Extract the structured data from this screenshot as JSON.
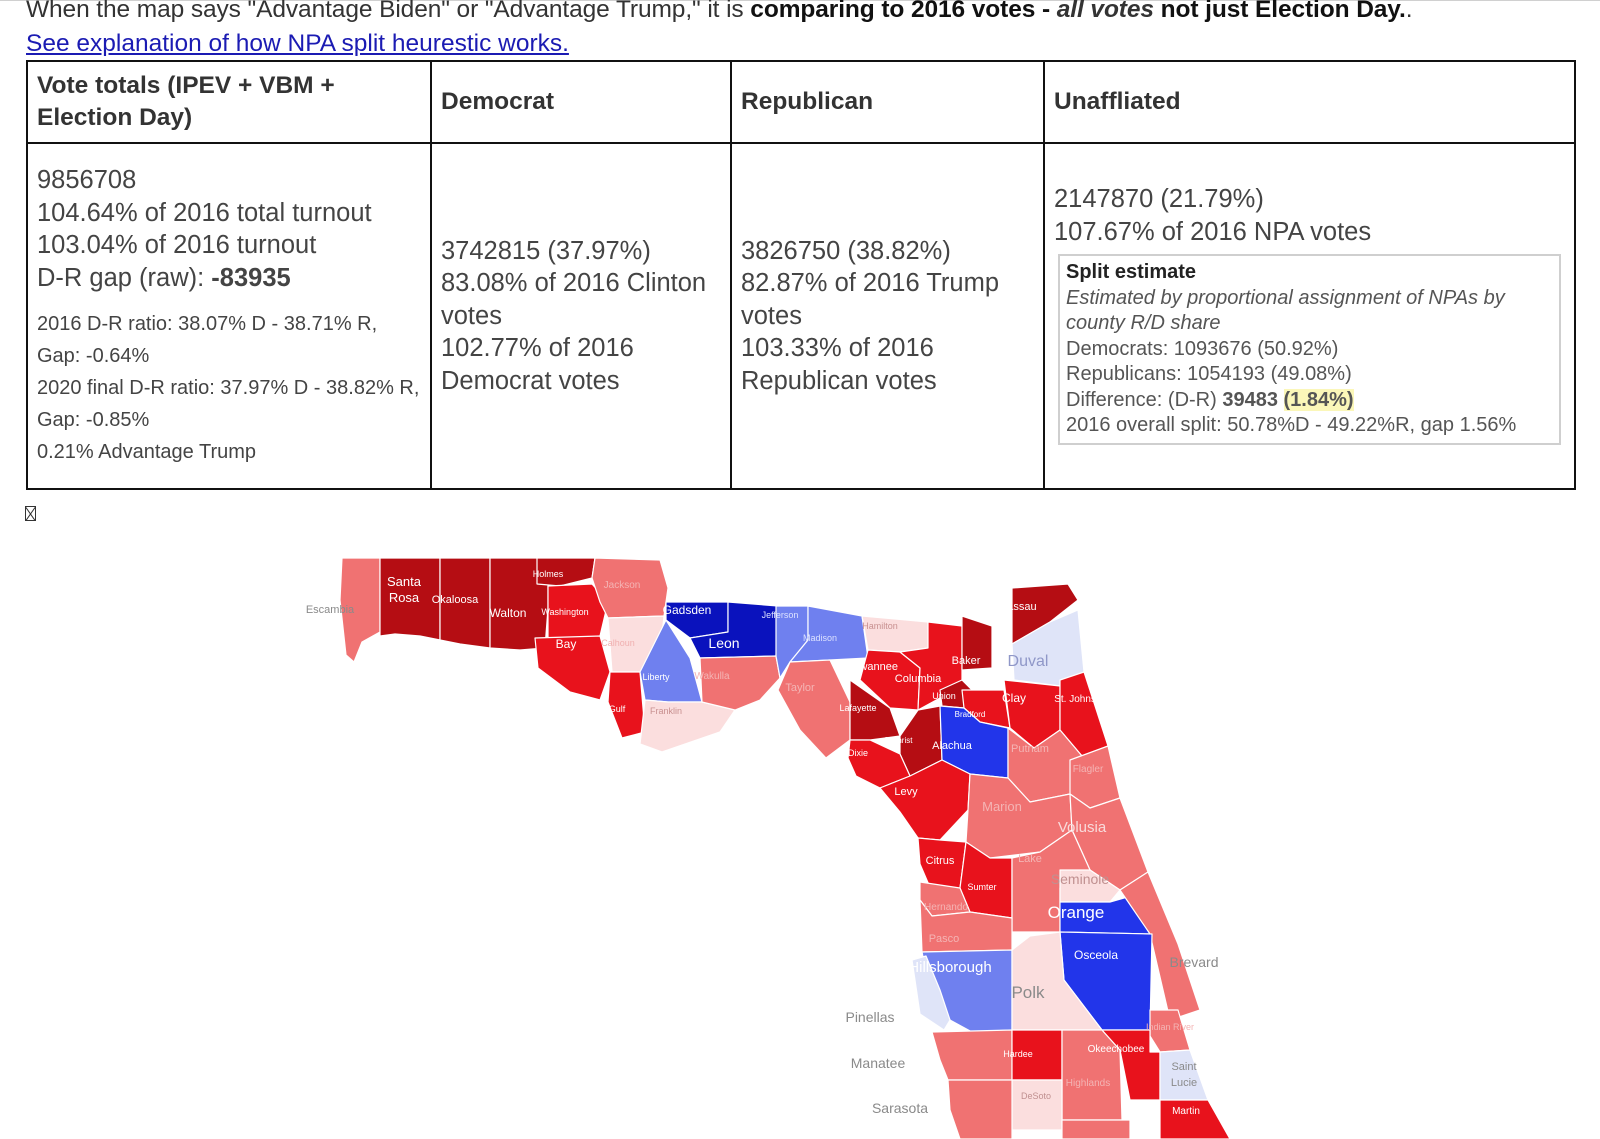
{
  "intro": {
    "prefix": "When the map says \"Advantage Biden\" or \"Advantage Trump,\" it is ",
    "bold_a": "comparing to 2016 votes - ",
    "bold_italic": "all votes",
    "bold_b": " not just Election Day.",
    "suffix": "."
  },
  "explain_link": "See explanation of how NPA split heurestic works.",
  "table": {
    "headers": {
      "totals": "Vote totals (IPEV + VBM + Election Day)",
      "democrat": "Democrat",
      "republican": "Republican",
      "unaffiliated": "Unaffliated"
    },
    "totals": {
      "total": "9856708",
      "pct_total_turnout": "104.64% of 2016 total turnout",
      "pct_turnout": "103.04% of 2016 turnout",
      "gap_label": "D-R gap (raw): ",
      "gap_value": "-83935",
      "ratio_2016": "2016 D-R ratio: 38.07% D - 38.71% R, Gap: -0.64%",
      "ratio_2020": "2020 final D-R ratio: 37.97% D - 38.82% R, Gap: -0.85%",
      "advantage": "0.21% Advantage Trump"
    },
    "democrat": {
      "votes": "3742815 (37.97%)",
      "pct_clinton": "83.08% of 2016 Clinton votes",
      "pct_party": "102.77% of 2016 Democrat votes"
    },
    "republican": {
      "votes": "3826750 (38.82%)",
      "pct_trump": "82.87% of 2016 Trump votes",
      "pct_party": "103.33% of 2016 Republican votes"
    },
    "unaffiliated": {
      "votes": "2147870 (21.79%)",
      "pct_npa": "107.67% of 2016 NPA votes",
      "split": {
        "title": "Split estimate",
        "desc": "Estimated by proportional assignment of NPAs by county R/D share",
        "democrats": "Democrats: 1093676 (50.92%)",
        "republicans": "Republicans: 1054193 (49.08%)",
        "diff_label": "Difference: (D-R) ",
        "diff_value": "39483",
        "diff_pct": "(1.84%)",
        "overall": "2016 overall split: 50.78%D - 49.22%R, gap 1.56%"
      }
    }
  },
  "map": {
    "labels": {
      "escambia": "Escambia",
      "santa_rosa_1": "Santa",
      "santa_rosa_2": "Rosa",
      "okaloosa": "Okaloosa",
      "walton": "Walton",
      "holmes": "Holmes",
      "washington": "Washington",
      "jackson": "Jackson",
      "bay": "Bay",
      "calhoun": "Calhoun",
      "gadsden": "Gadsden",
      "leon": "Leon",
      "jefferson": "Jefferson",
      "madison": "Madison",
      "hamilton": "Hamilton",
      "liberty": "Liberty",
      "wakulla": "Wakulla",
      "franklin": "Franklin",
      "gulf": "Gulf",
      "taylor": "Taylor",
      "suwannee": "Suwannee",
      "columbia": "Columbia",
      "baker": "Baker",
      "nassau": "Nassau",
      "duval": "Duval",
      "union": "Union",
      "bradford": "Bradford",
      "clay": "Clay",
      "st_johns": "St. Johns>",
      "lafayette": "Lafayette",
      "gilchrist": "Gilchrist",
      "alachua": "Alachua",
      "dixie": "Dixie",
      "putnam": "Putnam",
      "flagler": "Flagler",
      "levy": "Levy",
      "marion": "Marion",
      "volusia": "Volusia",
      "citrus": "Citrus",
      "lake": "Lake",
      "sumter": "Sumter",
      "seminole": "Seminole",
      "hernando": "Hernando",
      "orange": "Orange",
      "pasco": "Pasco",
      "hillsborough": "Hillsborough",
      "osceola": "Osceola",
      "brevard": "Brevard",
      "polk": "Polk",
      "pinellas": "Pinellas",
      "indian_river": "Indian River",
      "manatee": "Manatee",
      "hardee": "Hardee",
      "okeechobee": "Okeechobee",
      "highlands": "Highlands",
      "saint_lucie_1": "Saint",
      "saint_lucie_2": "Lucie",
      "desoto": "DeSoto",
      "sarasota": "Sarasota",
      "martin": "Martin"
    },
    "colors": {
      "dark_red": "#b50d13",
      "red": "#e8121c",
      "light_red": "#f07272",
      "pale_red": "#fbdede",
      "pale_blue": "#dfe4f8",
      "light_blue": "#6f80ef",
      "blue": "#2235ea",
      "dark_blue": "#0a12bd",
      "outline": "#9a9a9a"
    }
  }
}
